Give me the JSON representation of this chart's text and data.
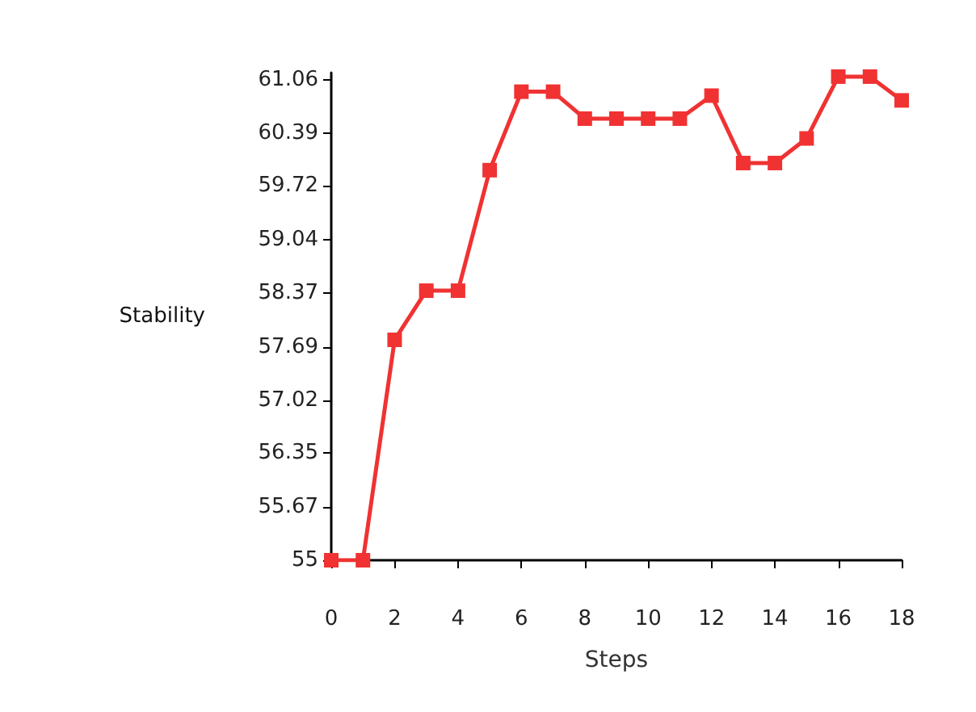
{
  "chart_data": {
    "type": "line",
    "xlabel": "Steps",
    "ylabel": "Stability",
    "x": [
      0,
      1,
      2,
      3,
      4,
      5,
      6,
      7,
      8,
      9,
      10,
      11,
      12,
      13,
      14,
      15,
      16,
      17,
      18
    ],
    "series": [
      {
        "color": "#f03232",
        "values": [
          55,
          55,
          57.78,
          58.4,
          58.4,
          59.92,
          60.91,
          60.91,
          60.57,
          60.57,
          60.57,
          60.57,
          60.86,
          60.01,
          60.01,
          60.32,
          61.1,
          61.1,
          60.8
        ]
      }
    ],
    "xlim": [
      0,
      18
    ],
    "xticks": [
      0,
      2,
      4,
      6,
      8,
      10,
      12,
      14,
      16,
      18
    ],
    "ylim": [
      55,
      61.15
    ],
    "yticks": [
      55,
      55.67,
      56.35,
      57.02,
      57.69,
      58.37,
      59.04,
      59.72,
      60.39,
      61.06
    ],
    "marker": "square",
    "line_style": "solid"
  }
}
